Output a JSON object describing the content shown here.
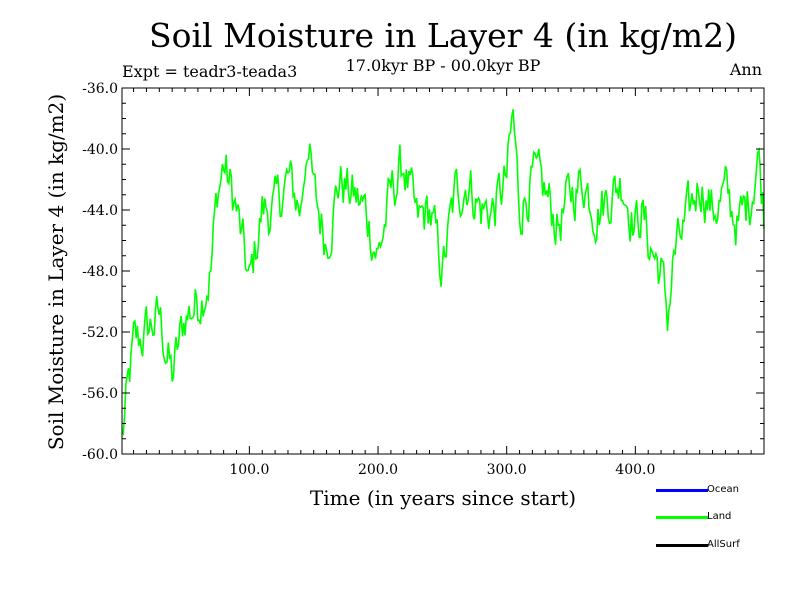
{
  "chart_data": {
    "type": "line",
    "title": "Soil Moisture in Layer 4 (in kg/m2)",
    "subtitle": "17.0kyr BP - 00.0kyr BP",
    "experiment": "Expt = teadr3-teada3",
    "season": "Ann",
    "xlabel": "Time (in years since start)",
    "ylabel": "Soil Moisture in Layer 4 (in kg/m2)",
    "xlim": [
      1,
      500
    ],
    "ylim": [
      -60,
      -36
    ],
    "xticks": [
      100,
      200,
      300,
      400
    ],
    "xtick_labels": [
      "100.0",
      "200.0",
      "300.0",
      "400.0"
    ],
    "yticks": [
      -60,
      -56,
      -52,
      -48,
      -44,
      -40,
      -36
    ],
    "ytick_labels": [
      "-60.0",
      "-56.0",
      "-52.0",
      "-48.0",
      "-44.0",
      "-40.0",
      "-36.0"
    ],
    "series": [
      {
        "name": "Land",
        "color": "#00ff00",
        "x": [
          1,
          10,
          20,
          30,
          40,
          50,
          60,
          70,
          75,
          80,
          90,
          100,
          110,
          120,
          130,
          140,
          145,
          150,
          160,
          170,
          180,
          190,
          200,
          210,
          220,
          230,
          240,
          250,
          260,
          270,
          280,
          290,
          300,
          305,
          310,
          320,
          330,
          340,
          350,
          360,
          370,
          380,
          390,
          400,
          405,
          410,
          420,
          425,
          430,
          440,
          450,
          460,
          470,
          480,
          490,
          495,
          500
        ],
        "values": [
          -59,
          -53,
          -52,
          -51,
          -55,
          -51,
          -50,
          -48,
          -43,
          -41,
          -44,
          -49,
          -44,
          -44,
          -42,
          -44,
          -39,
          -43,
          -46,
          -42,
          -43,
          -44,
          -47,
          -43,
          -41,
          -45,
          -44,
          -48,
          -43,
          -42,
          -44,
          -44,
          -42,
          -38,
          -44,
          -42,
          -43,
          -45,
          -43,
          -42,
          -44,
          -43,
          -42,
          -45,
          -44,
          -46,
          -48,
          -51,
          -47,
          -45,
          -42,
          -44,
          -43,
          -45,
          -43,
          -40,
          -44
        ]
      },
      {
        "name": "Ocean",
        "color": "#0000ff",
        "values": []
      },
      {
        "name": "AllSurf",
        "color": "#000000",
        "values": []
      }
    ]
  },
  "legend": [
    {
      "label": "Ocean",
      "color": "#0000ff"
    },
    {
      "label": "Land",
      "color": "#00ff00"
    },
    {
      "label": "AllSurf",
      "color": "#000000"
    }
  ]
}
